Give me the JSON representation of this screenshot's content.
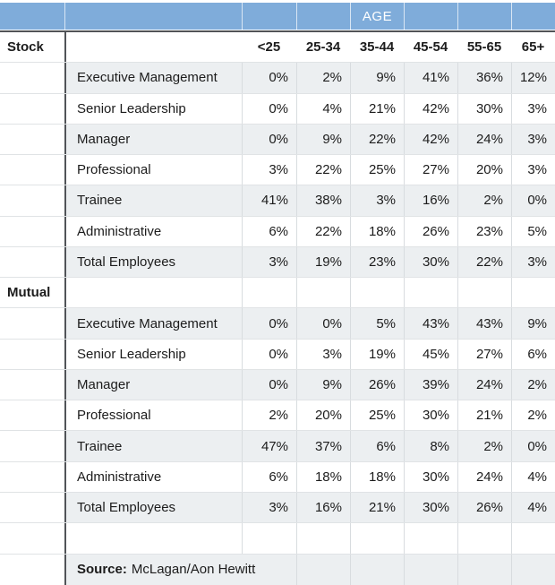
{
  "table": {
    "age_header": "AGE",
    "rows": [
      {
        "kind": "colhead",
        "group": "Stock",
        "label": "",
        "cells": [
          "<25",
          "25-34",
          "35-44",
          "45-54",
          "55-65",
          "65+"
        ]
      },
      {
        "kind": "data",
        "group": "",
        "label": "Executive Management",
        "cells": [
          "0%",
          "2%",
          "9%",
          "41%",
          "36%",
          "12%"
        ]
      },
      {
        "kind": "data",
        "group": "",
        "label": "Senior Leadership",
        "cells": [
          "0%",
          "4%",
          "21%",
          "42%",
          "30%",
          "3%"
        ]
      },
      {
        "kind": "data",
        "group": "",
        "label": "Manager",
        "cells": [
          "0%",
          "9%",
          "22%",
          "42%",
          "24%",
          "3%"
        ]
      },
      {
        "kind": "data",
        "group": "",
        "label": "Professional",
        "cells": [
          "3%",
          "22%",
          "25%",
          "27%",
          "20%",
          "3%"
        ]
      },
      {
        "kind": "data",
        "group": "",
        "label": "Trainee",
        "cells": [
          "41%",
          "38%",
          "3%",
          "16%",
          "2%",
          "0%"
        ]
      },
      {
        "kind": "data",
        "group": "",
        "label": "Administrative",
        "cells": [
          "6%",
          "22%",
          "18%",
          "26%",
          "23%",
          "5%"
        ]
      },
      {
        "kind": "data",
        "group": "",
        "label": "Total Employees",
        "cells": [
          "3%",
          "19%",
          "23%",
          "30%",
          "22%",
          "3%"
        ]
      },
      {
        "kind": "group",
        "group": "Mutual",
        "label": "",
        "cells": [
          "",
          "",
          "",
          "",
          "",
          ""
        ]
      },
      {
        "kind": "data",
        "group": "",
        "label": "Executive Management",
        "cells": [
          "0%",
          "0%",
          "5%",
          "43%",
          "43%",
          "9%"
        ]
      },
      {
        "kind": "data",
        "group": "",
        "label": "Senior Leadership",
        "cells": [
          "0%",
          "3%",
          "19%",
          "45%",
          "27%",
          "6%"
        ]
      },
      {
        "kind": "data",
        "group": "",
        "label": "Manager",
        "cells": [
          "0%",
          "9%",
          "26%",
          "39%",
          "24%",
          "2%"
        ]
      },
      {
        "kind": "data",
        "group": "",
        "label": "Professional",
        "cells": [
          "2%",
          "20%",
          "25%",
          "30%",
          "21%",
          "2%"
        ]
      },
      {
        "kind": "data",
        "group": "",
        "label": "Trainee",
        "cells": [
          "47%",
          "37%",
          "6%",
          "8%",
          "2%",
          "0%"
        ]
      },
      {
        "kind": "data",
        "group": "",
        "label": "Administrative",
        "cells": [
          "6%",
          "18%",
          "18%",
          "30%",
          "24%",
          "4%"
        ]
      },
      {
        "kind": "data",
        "group": "",
        "label": "Total Employees",
        "cells": [
          "3%",
          "16%",
          "21%",
          "30%",
          "26%",
          "4%"
        ]
      },
      {
        "kind": "empty",
        "group": "",
        "label": "",
        "cells": [
          "",
          "",
          "",
          "",
          "",
          ""
        ]
      },
      {
        "kind": "source",
        "group": "",
        "source_label": "Source:",
        "source_text": "McLagan/Aon Hewitt",
        "cells": [
          "",
          "",
          "",
          "",
          ""
        ]
      }
    ]
  },
  "chart_data": {
    "type": "table",
    "title": "AGE",
    "units": "%",
    "columns": [
      "<25",
      "25-34",
      "35-44",
      "45-54",
      "55-65",
      "65+"
    ],
    "sections": [
      {
        "group": "Stock",
        "rows": [
          {
            "label": "Executive Management",
            "values": [
              0,
              2,
              9,
              41,
              36,
              12
            ]
          },
          {
            "label": "Senior Leadership",
            "values": [
              0,
              4,
              21,
              42,
              30,
              3
            ]
          },
          {
            "label": "Manager",
            "values": [
              0,
              9,
              22,
              42,
              24,
              3
            ]
          },
          {
            "label": "Professional",
            "values": [
              3,
              22,
              25,
              27,
              20,
              3
            ]
          },
          {
            "label": "Trainee",
            "values": [
              41,
              38,
              3,
              16,
              2,
              0
            ]
          },
          {
            "label": "Administrative",
            "values": [
              6,
              22,
              18,
              26,
              23,
              5
            ]
          },
          {
            "label": "Total Employees",
            "values": [
              3,
              19,
              23,
              30,
              22,
              3
            ]
          }
        ]
      },
      {
        "group": "Mutual",
        "rows": [
          {
            "label": "Executive Management",
            "values": [
              0,
              0,
              5,
              43,
              43,
              9
            ]
          },
          {
            "label": "Senior Leadership",
            "values": [
              0,
              3,
              19,
              45,
              27,
              6
            ]
          },
          {
            "label": "Manager",
            "values": [
              0,
              9,
              26,
              39,
              24,
              2
            ]
          },
          {
            "label": "Professional",
            "values": [
              2,
              20,
              25,
              30,
              21,
              2
            ]
          },
          {
            "label": "Trainee",
            "values": [
              47,
              37,
              6,
              8,
              2,
              0
            ]
          },
          {
            "label": "Administrative",
            "values": [
              6,
              18,
              18,
              30,
              24,
              4
            ]
          },
          {
            "label": "Total Employees",
            "values": [
              3,
              16,
              21,
              30,
              26,
              4
            ]
          }
        ]
      }
    ],
    "source": "McLagan/Aon Hewitt"
  },
  "colors": {
    "header_blue": "#7FACDA",
    "stripe": "#ECEFF1",
    "dark_border": "#515458",
    "row_border": "#E0E3E5",
    "cell_divider": "#D8DCDF",
    "text": "#1C1C1C",
    "age_text": "#FFFFFF"
  }
}
